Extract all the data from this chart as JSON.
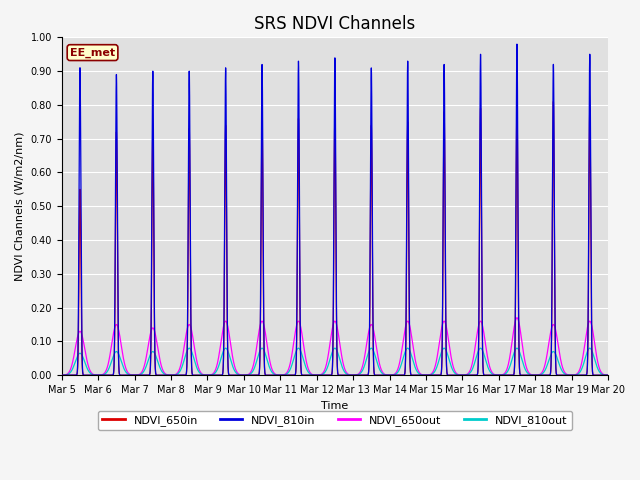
{
  "title": "SRS NDVI Channels",
  "ylabel": "NDVI Channels (W/m2/nm)",
  "xlabel": "Time",
  "annotation": "EE_met",
  "ylim": [
    0.0,
    1.0
  ],
  "yticks": [
    0.0,
    0.1,
    0.2,
    0.3,
    0.4,
    0.5,
    0.6,
    0.7,
    0.8,
    0.9,
    1.0
  ],
  "num_days": 15,
  "colors": {
    "NDVI_650in": "#dd0000",
    "NDVI_810in": "#0000dd",
    "NDVI_650out": "#ff00ff",
    "NDVI_810out": "#00cccc"
  },
  "background_color": "#e0e0e0",
  "grid_color": "#ffffff",
  "peak_810in": [
    0.91,
    0.89,
    0.9,
    0.9,
    0.91,
    0.92,
    0.93,
    0.94,
    0.91,
    0.93,
    0.92,
    0.95,
    0.98,
    0.92,
    0.95
  ],
  "peak_650in": [
    0.55,
    0.72,
    0.72,
    0.73,
    0.74,
    0.75,
    0.76,
    0.77,
    0.74,
    0.75,
    0.78,
    0.79,
    0.8,
    0.81,
    0.79
  ],
  "peak_650out": [
    0.13,
    0.15,
    0.14,
    0.15,
    0.16,
    0.16,
    0.16,
    0.16,
    0.15,
    0.16,
    0.16,
    0.16,
    0.17,
    0.15,
    0.16
  ],
  "peak_810out": [
    0.065,
    0.07,
    0.07,
    0.08,
    0.08,
    0.08,
    0.08,
    0.08,
    0.08,
    0.08,
    0.08,
    0.08,
    0.08,
    0.07,
    0.08
  ],
  "title_fontsize": 12,
  "tick_fontsize": 7,
  "label_fontsize": 8,
  "legend_fontsize": 8
}
